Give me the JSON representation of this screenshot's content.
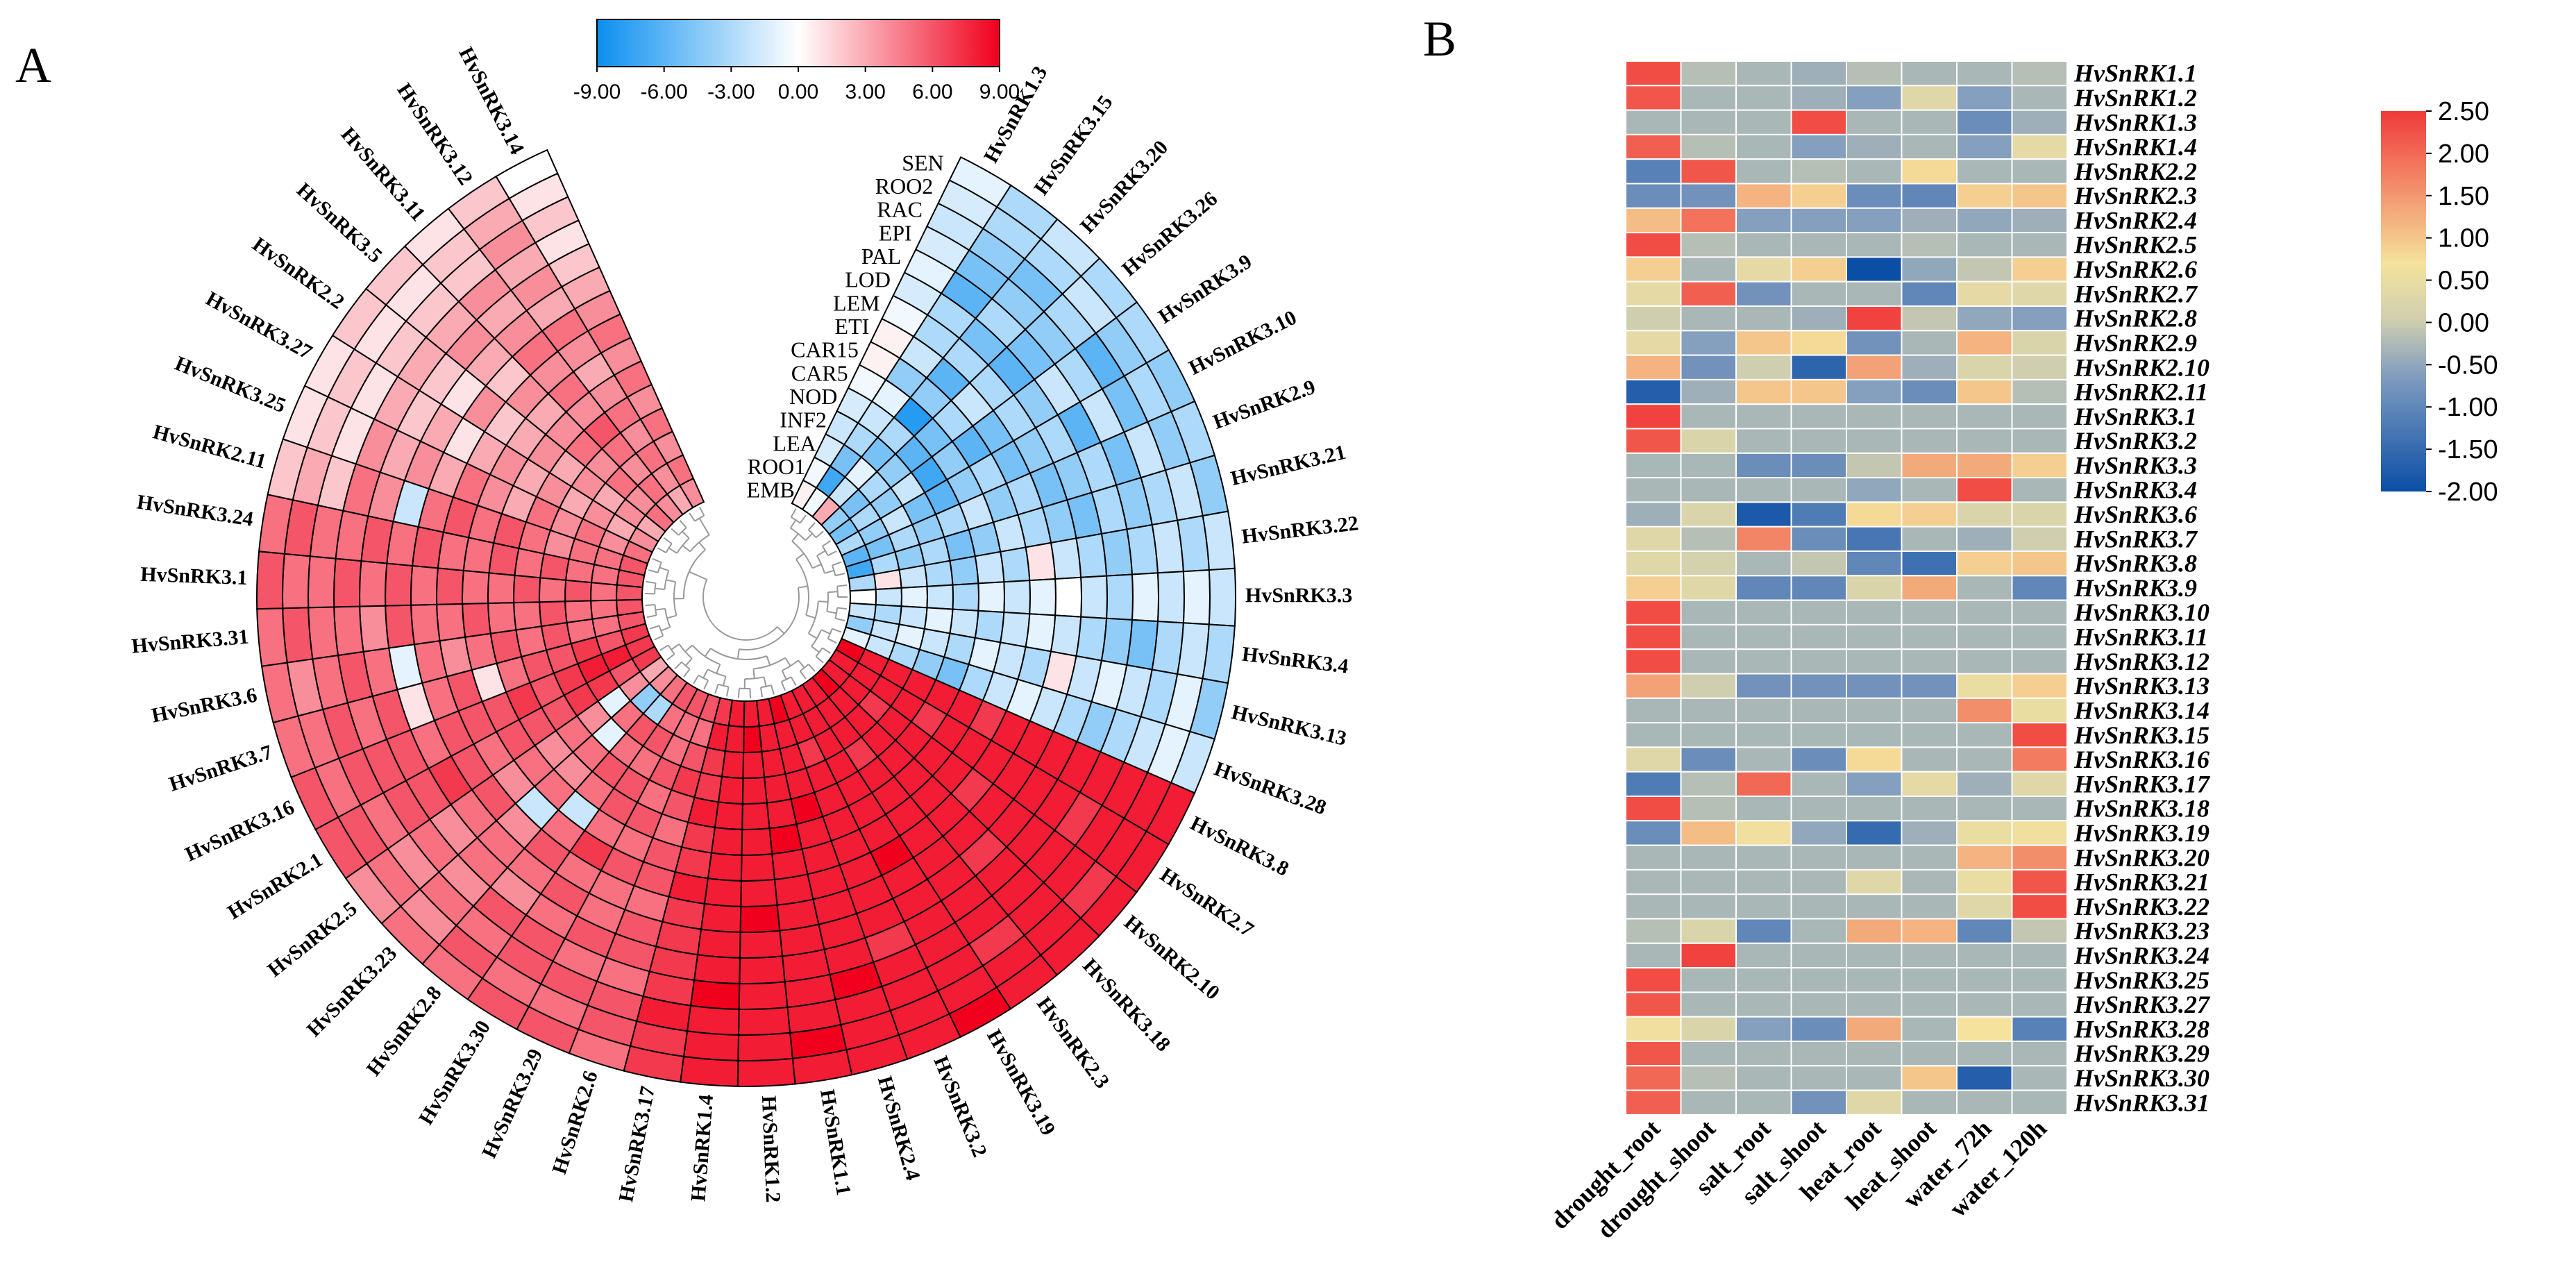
{
  "panel_a": {
    "letter": "A"
  },
  "panel_b": {
    "letter": "B"
  },
  "colors": {
    "a_low": "#0a8ff0",
    "a_mid": "#ffffff",
    "a_high": "#f0001c",
    "b_low": "#0b4ea6",
    "b_lowmid": "#7f9bbf",
    "b_mid": "#cfcfb0",
    "b_midhigh": "#f5e29c",
    "b_high": "#f03a3a"
  },
  "chart_data": [
    {
      "type": "heatmap",
      "layout": "circular",
      "title": "",
      "colorbar": {
        "min": -9,
        "max": 9,
        "ticks": [
          "-9.00",
          "-6.00",
          "-3.00",
          "0.00",
          "3.00",
          "6.00",
          "9.00"
        ]
      },
      "tissues": [
        "SEN",
        "ROO2",
        "RAC",
        "EPI",
        "PAL",
        "LOD",
        "LEM",
        "ETI",
        "CAR15",
        "CAR5",
        "NOD",
        "INF2",
        "LEA",
        "ROO1",
        "EMB"
      ],
      "genes": [
        "HvSnRK1.3",
        "HvSnRK3.15",
        "HvSnRK3.20",
        "HvSnRK3.26",
        "HvSnRK3.9",
        "HvSnRK3.10",
        "HvSnRK2.9",
        "HvSnRK3.21",
        "HvSnRK3.22",
        "HvSnRK3.3",
        "HvSnRK3.4",
        "HvSnRK3.13",
        "HvSnRK3.28",
        "HvSnRK3.8",
        "HvSnRK2.7",
        "HvSnRK2.10",
        "HvSnRK3.18",
        "HvSnRK2.3",
        "HvSnRK3.19",
        "HvSnRK3.2",
        "HvSnRK2.4",
        "HvSnRK1.1",
        "HvSnRK1.2",
        "HvSnRK1.4",
        "HvSnRK3.17",
        "HvSnRK2.6",
        "HvSnRK3.29",
        "HvSnRK3.30",
        "HvSnRK2.8",
        "HvSnRK3.23",
        "HvSnRK2.5",
        "HvSnRK2.1",
        "HvSnRK3.16",
        "HvSnRK3.7",
        "HvSnRK3.6",
        "HvSnRK3.31",
        "HvSnRK3.1",
        "HvSnRK3.24",
        "HvSnRK2.11",
        "HvSnRK3.25",
        "HvSnRK3.27",
        "HvSnRK2.2",
        "HvSnRK3.5",
        "HvSnRK3.11",
        "HvSnRK3.12",
        "HvSnRK3.14"
      ],
      "values": [
        [
          0.5,
          -0.5,
          -1.5,
          -2,
          -1.5,
          -0.5,
          0.5,
          0.5,
          -0.5,
          -1.5,
          -1,
          -1.5,
          -2,
          -1.5,
          -1
        ],
        [
          -0.5,
          -7,
          -5,
          -3,
          -2,
          -1,
          -4,
          -2,
          -3,
          -3,
          -6,
          -5,
          -4,
          -3,
          -3
        ],
        [
          3,
          -2,
          -1,
          -5,
          -3,
          -8,
          -4,
          -6,
          -3,
          -5,
          -3,
          -4,
          -5,
          -3,
          -2
        ],
        [
          -4,
          -5,
          -3,
          -4,
          -6,
          -5,
          -3,
          -2,
          -3,
          -6,
          -5,
          -4,
          -3,
          -2,
          -3
        ],
        [
          -5,
          -3,
          -4,
          -2,
          -7,
          -4,
          -6,
          -5,
          -3,
          -4,
          -2,
          -3,
          -6,
          -4,
          -3
        ],
        [
          -3,
          -4,
          -2,
          -5,
          -6,
          -4,
          -3,
          -5,
          -4,
          -3,
          -6,
          -2,
          -5,
          -3,
          -4
        ],
        [
          -6,
          -5,
          -3,
          -4,
          -3,
          -2,
          -4,
          -3,
          -5,
          -4,
          -3,
          -5,
          -2,
          -4,
          -3
        ],
        [
          -7,
          -3,
          -4,
          -3,
          -5,
          -4,
          -2,
          -3,
          -4,
          -5,
          -3,
          -4,
          -3,
          -2,
          -4
        ],
        [
          -3,
          1,
          -2,
          -3,
          -4,
          -2,
          -3,
          1,
          -2,
          -3,
          -4,
          -3,
          -2,
          -3,
          -2
        ],
        [
          0,
          -2,
          -1,
          -2,
          -3,
          -1,
          -2,
          -1,
          0,
          -2,
          -3,
          -1,
          -2,
          -1,
          -2
        ],
        [
          -2,
          -3,
          -2,
          -1,
          -2,
          -3,
          -2,
          -1,
          -2,
          -3,
          -4,
          -5,
          -3,
          -2,
          -3
        ],
        [
          -4,
          -2,
          -1,
          -2,
          -3,
          -1,
          -2,
          -3,
          1,
          -2,
          -1,
          -2,
          -3,
          -1,
          -4
        ],
        [
          -1,
          -2,
          -3,
          -4,
          -5,
          -3,
          -2,
          -1,
          -2,
          -3,
          -4,
          -3,
          -2,
          -1,
          -2
        ],
        [
          9,
          8,
          8,
          8,
          8,
          8,
          7,
          8,
          8,
          8,
          8,
          8,
          8,
          8,
          8
        ],
        [
          8,
          8,
          8,
          8,
          7,
          8,
          8,
          8,
          8,
          8,
          8,
          7,
          8,
          8,
          8
        ],
        [
          8,
          8,
          7,
          8,
          8,
          8,
          8,
          7,
          8,
          8,
          8,
          8,
          8,
          7,
          8
        ],
        [
          9,
          8,
          8,
          8,
          8,
          8,
          8,
          8,
          8,
          7,
          8,
          8,
          8,
          8,
          8
        ],
        [
          8,
          8,
          8,
          7,
          8,
          8,
          8,
          8,
          8,
          8,
          8,
          8,
          7,
          8,
          8
        ],
        [
          8,
          8,
          8,
          8,
          8,
          8,
          8,
          9,
          8,
          8,
          8,
          8,
          8,
          8,
          9
        ],
        [
          8,
          8,
          7,
          8,
          8,
          8,
          8,
          8,
          8,
          8,
          7,
          8,
          8,
          8,
          8
        ],
        [
          9,
          8,
          8,
          8,
          9,
          8,
          8,
          8,
          8,
          8,
          8,
          9,
          8,
          8,
          8
        ],
        [
          8,
          8,
          8,
          8,
          8,
          9,
          8,
          8,
          8,
          8,
          8,
          8,
          8,
          9,
          8
        ],
        [
          8,
          9,
          8,
          8,
          8,
          8,
          8,
          8,
          9,
          8,
          8,
          8,
          8,
          8,
          8
        ],
        [
          8,
          8,
          8,
          8,
          8,
          8,
          8,
          8,
          8,
          8,
          8,
          9,
          8,
          8,
          8
        ],
        [
          7,
          8,
          7,
          7,
          8,
          7,
          7,
          8,
          7,
          7,
          7,
          7,
          8,
          7,
          7
        ],
        [
          6,
          5,
          6,
          7,
          6,
          5,
          6,
          6,
          5,
          6,
          6,
          5,
          6,
          6,
          5
        ],
        [
          6,
          5,
          5,
          6,
          5,
          6,
          5,
          6,
          5,
          5,
          6,
          5,
          6,
          5,
          6
        ],
        [
          6,
          5,
          6,
          5,
          6,
          6,
          5,
          7,
          5,
          6,
          5,
          6,
          6,
          5,
          6
        ],
        [
          5,
          -3,
          6,
          5,
          6,
          5,
          -2,
          5,
          6,
          5,
          4,
          6,
          5,
          6,
          5
        ],
        [
          4,
          -4,
          5,
          -1,
          5,
          4,
          5,
          -2,
          4,
          5,
          5,
          4,
          5,
          4,
          5
        ],
        [
          3,
          4,
          -1,
          4,
          5,
          4,
          5,
          4,
          6,
          5,
          4,
          5,
          4,
          5,
          4
        ],
        [
          7,
          6,
          7,
          7,
          6,
          6,
          6,
          5,
          6,
          7,
          6,
          6,
          5,
          6,
          6
        ],
        [
          7,
          8,
          8,
          7,
          6,
          7,
          6,
          6,
          6,
          5,
          6,
          6,
          6,
          5,
          6
        ],
        [
          7,
          6,
          7,
          6,
          6,
          5,
          1,
          6,
          5,
          1,
          6,
          5,
          6,
          5,
          5
        ],
        [
          6,
          5,
          5,
          6,
          5,
          6,
          5,
          4,
          5,
          -1,
          5,
          6,
          5,
          4,
          5
        ],
        [
          6,
          5,
          5,
          6,
          5,
          5,
          6,
          5,
          5,
          6,
          4,
          5,
          5,
          6,
          5
        ],
        [
          6,
          5,
          6,
          5,
          6,
          5,
          5,
          6,
          5,
          6,
          5,
          6,
          5,
          5,
          6
        ],
        [
          6,
          5,
          5,
          6,
          5,
          6,
          5,
          5,
          6,
          5,
          6,
          5,
          5,
          6,
          5
        ],
        [
          6,
          5,
          5,
          4,
          5,
          6,
          5,
          6,
          5,
          -2,
          4,
          5,
          2,
          3,
          2
        ],
        [
          5,
          4,
          5,
          4,
          5,
          3,
          4,
          5,
          3,
          4,
          3,
          4,
          1,
          2,
          1
        ],
        [
          4,
          3,
          4,
          3,
          4,
          3,
          4,
          3,
          1,
          3,
          2,
          3,
          1,
          2,
          1
        ],
        [
          3,
          4,
          3,
          4,
          3,
          4,
          3,
          2,
          4,
          1,
          2,
          3,
          2,
          1,
          2
        ],
        [
          5,
          4,
          5,
          4,
          5,
          4,
          3,
          4,
          2,
          3,
          4,
          3,
          2,
          1,
          2
        ],
        [
          4,
          5,
          4,
          5,
          6,
          4,
          5,
          4,
          5,
          4,
          3,
          4,
          2,
          2,
          1
        ],
        [
          3,
          4,
          5,
          4,
          5,
          4,
          3,
          4,
          5,
          3,
          4,
          3,
          4,
          3,
          2
        ],
        [
          4,
          5,
          4,
          5,
          4,
          5,
          4,
          5,
          4,
          3,
          2,
          1,
          2,
          1,
          0
        ]
      ]
    },
    {
      "type": "heatmap",
      "layout": "rectangular",
      "title": "",
      "colorbar": {
        "min": -2.0,
        "max": 2.5,
        "ticks": [
          "2.50",
          "2.00",
          "1.50",
          "1.00",
          "0.50",
          "0.00",
          "-0.50",
          "-1.00",
          "-1.50",
          "-2.00"
        ]
      },
      "conditions": [
        "drought_root",
        "drought_shoot",
        "salt_root",
        "salt_shoot",
        "heat_root",
        "heat_shoot",
        "water_72h",
        "water_120h"
      ],
      "genes": [
        "HvSnRK1.1",
        "HvSnRK1.2",
        "HvSnRK1.3",
        "HvSnRK1.4",
        "HvSnRK2.2",
        "HvSnRK2.3",
        "HvSnRK2.4",
        "HvSnRK2.5",
        "HvSnRK2.6",
        "HvSnRK2.7",
        "HvSnRK2.8",
        "HvSnRK2.9",
        "HvSnRK2.10",
        "HvSnRK2.11",
        "HvSnRK3.1",
        "HvSnRK3.2",
        "HvSnRK3.3",
        "HvSnRK3.4",
        "HvSnRK3.6",
        "HvSnRK3.7",
        "HvSnRK3.8",
        "HvSnRK3.9",
        "HvSnRK3.10",
        "HvSnRK3.11",
        "HvSnRK3.12",
        "HvSnRK3.13",
        "HvSnRK3.14",
        "HvSnRK3.15",
        "HvSnRK3.16",
        "HvSnRK3.17",
        "HvSnRK3.18",
        "HvSnRK3.19",
        "HvSnRK3.20",
        "HvSnRK3.21",
        "HvSnRK3.22",
        "HvSnRK3.23",
        "HvSnRK3.24",
        "HvSnRK3.25",
        "HvSnRK3.27",
        "HvSnRK3.28",
        "HvSnRK3.29",
        "HvSnRK3.30",
        "HvSnRK3.31"
      ],
      "values": [
        [
          2.3,
          -0.2,
          -0.3,
          -0.4,
          -0.2,
          -0.3,
          -0.3,
          -0.2
        ],
        [
          2.2,
          -0.3,
          -0.3,
          -0.4,
          -0.6,
          0.3,
          -0.6,
          -0.3
        ],
        [
          -0.3,
          -0.3,
          -0.3,
          2.3,
          -0.3,
          -0.3,
          -0.9,
          -0.4
        ],
        [
          2.1,
          -0.2,
          -0.3,
          -0.6,
          -0.4,
          -0.3,
          -0.6,
          0.4
        ],
        [
          -1.1,
          2.2,
          -0.3,
          -0.2,
          -0.3,
          0.8,
          -0.3,
          -0.3
        ],
        [
          -0.9,
          -0.8,
          1.2,
          0.9,
          -0.9,
          -1.0,
          0.9,
          1.0
        ],
        [
          1.1,
          1.9,
          -0.6,
          -0.6,
          -0.6,
          -0.4,
          -0.5,
          -0.4
        ],
        [
          2.3,
          -0.2,
          -0.3,
          -0.3,
          -0.3,
          -0.2,
          -0.3,
          -0.3
        ],
        [
          0.9,
          -0.3,
          0.4,
          0.9,
          -2.0,
          -0.5,
          -0.1,
          0.9
        ],
        [
          0.4,
          2.1,
          -0.8,
          -0.3,
          -0.3,
          -1.0,
          0.4,
          0.3
        ],
        [
          0.0,
          -0.3,
          -0.3,
          -0.4,
          2.4,
          -0.1,
          -0.5,
          -0.6
        ],
        [
          0.4,
          -0.6,
          1.0,
          0.8,
          -0.8,
          -0.3,
          1.2,
          0.2
        ],
        [
          1.2,
          -0.8,
          0.0,
          -1.6,
          1.4,
          -0.4,
          0.2,
          0.0
        ],
        [
          -1.7,
          -0.4,
          1.0,
          1.0,
          -0.6,
          -0.9,
          1.0,
          -0.2
        ],
        [
          2.4,
          -0.3,
          -0.3,
          -0.3,
          -0.3,
          -0.3,
          -0.3,
          -0.3
        ],
        [
          2.2,
          0.2,
          -0.3,
          -0.3,
          -0.3,
          -0.3,
          -0.3,
          -0.3
        ],
        [
          -0.3,
          -0.3,
          -0.9,
          -0.9,
          -0.1,
          1.3,
          1.3,
          0.9
        ],
        [
          -0.3,
          -0.3,
          -0.3,
          -0.3,
          -0.5,
          -0.3,
          2.3,
          -0.3
        ],
        [
          -0.4,
          0.2,
          -1.8,
          -1.2,
          0.8,
          0.9,
          0.2,
          0.2
        ],
        [
          0.3,
          -0.2,
          1.7,
          -0.9,
          -1.3,
          -0.3,
          -0.4,
          0.0
        ],
        [
          0.3,
          0.1,
          -0.3,
          -0.1,
          -1.0,
          -1.4,
          0.9,
          1.0
        ],
        [
          0.9,
          0.3,
          -1.0,
          -1.0,
          0.2,
          1.3,
          -0.3,
          -1.0
        ],
        [
          2.3,
          -0.3,
          -0.3,
          -0.3,
          -0.3,
          -0.3,
          -0.3,
          -0.3
        ],
        [
          2.3,
          -0.3,
          -0.3,
          -0.3,
          -0.3,
          -0.3,
          -0.3,
          -0.3
        ],
        [
          2.3,
          -0.3,
          -0.3,
          -0.3,
          -0.3,
          -0.3,
          -0.3,
          -0.3
        ],
        [
          1.4,
          0.0,
          -0.8,
          -0.8,
          -0.8,
          -0.8,
          0.5,
          0.9
        ],
        [
          -0.3,
          -0.3,
          -0.3,
          -0.3,
          -0.3,
          -0.3,
          1.6,
          0.5
        ],
        [
          -0.3,
          -0.3,
          -0.3,
          -0.3,
          -0.3,
          -0.3,
          -0.3,
          2.3
        ],
        [
          0.3,
          -0.9,
          -0.3,
          -0.9,
          0.8,
          -0.3,
          -0.3,
          1.8
        ],
        [
          -1.2,
          -0.2,
          2.0,
          -0.3,
          -0.6,
          0.4,
          -0.4,
          0.3
        ],
        [
          2.3,
          -0.2,
          -0.3,
          -0.3,
          -0.3,
          -0.3,
          -0.3,
          -0.3
        ],
        [
          -0.9,
          1.1,
          0.6,
          -0.5,
          -1.5,
          -0.4,
          0.5,
          0.6
        ],
        [
          -0.3,
          -0.3,
          -0.3,
          -0.3,
          -0.3,
          -0.3,
          1.2,
          1.6
        ],
        [
          -0.3,
          -0.3,
          -0.3,
          -0.3,
          0.3,
          -0.3,
          0.5,
          2.2
        ],
        [
          -0.3,
          -0.3,
          -0.3,
          -0.3,
          -0.3,
          -0.3,
          0.3,
          2.3
        ],
        [
          -0.2,
          0.2,
          -1.0,
          -0.3,
          1.3,
          1.2,
          -1.0,
          -0.1
        ],
        [
          -0.3,
          2.4,
          -0.3,
          -0.3,
          -0.3,
          -0.3,
          -0.3,
          -0.3
        ],
        [
          2.3,
          -0.3,
          -0.3,
          -0.3,
          -0.3,
          -0.3,
          -0.3,
          -0.3
        ],
        [
          2.2,
          -0.3,
          -0.3,
          -0.3,
          -0.3,
          -0.3,
          -0.3,
          -0.3
        ],
        [
          0.6,
          0.2,
          -0.6,
          -0.9,
          1.3,
          -0.3,
          0.7,
          -1.1
        ],
        [
          2.2,
          -0.3,
          -0.3,
          -0.3,
          -0.3,
          -0.3,
          -0.3,
          -0.3
        ],
        [
          2.0,
          -0.2,
          -0.3,
          -0.3,
          -0.3,
          1.0,
          -1.7,
          -0.3
        ],
        [
          2.1,
          -0.3,
          -0.3,
          -0.8,
          0.3,
          -0.3,
          -0.3,
          -0.3
        ]
      ]
    }
  ]
}
